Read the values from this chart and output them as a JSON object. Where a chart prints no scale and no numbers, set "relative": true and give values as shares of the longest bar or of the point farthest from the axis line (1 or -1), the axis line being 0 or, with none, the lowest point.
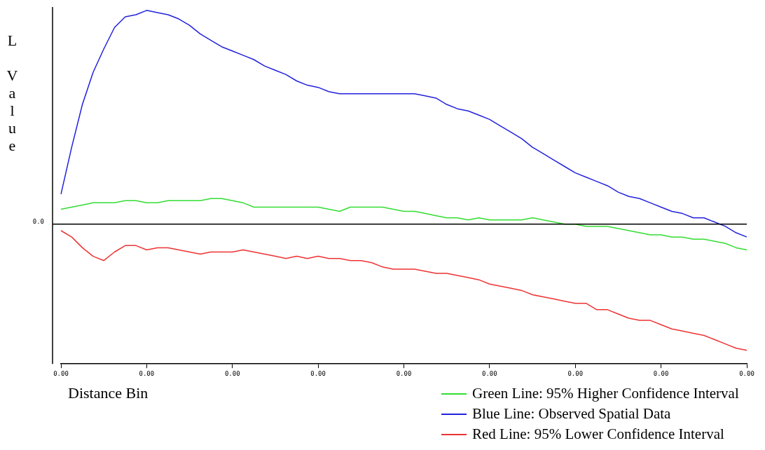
{
  "chart_data": {
    "type": "line",
    "relative": true,
    "xlabel": "Distance Bin",
    "ylabel": "L Value",
    "legend": "bottom right",
    "marker": "none",
    "categories": [
      "0.00",
      null,
      null,
      null,
      null,
      null,
      null,
      null,
      "0.00",
      null,
      null,
      null,
      null,
      null,
      null,
      null,
      "0.00",
      null,
      null,
      null,
      null,
      null,
      null,
      null,
      "0.00",
      null,
      null,
      null,
      null,
      null,
      null,
      null,
      "0.00",
      null,
      null,
      null,
      null,
      null,
      null,
      null,
      "0.00",
      null,
      null,
      null,
      null,
      null,
      null,
      null,
      "0.00",
      null,
      null,
      null,
      null,
      null,
      null,
      null,
      "0.00",
      null,
      null,
      null,
      null,
      null,
      null,
      null,
      "0.00"
    ],
    "ref_lines": [
      {
        "axis": "y",
        "value": 0,
        "label": "0.0",
        "color": "#000000"
      }
    ],
    "series": [
      {
        "name": "Green Line: 95% Higher Confidence Interval",
        "color": "#33dd33",
        "values": [
          0.07,
          0.08,
          0.09,
          0.1,
          0.1,
          0.1,
          0.11,
          0.11,
          0.1,
          0.1,
          0.11,
          0.11,
          0.11,
          0.11,
          0.12,
          0.12,
          0.11,
          0.1,
          0.08,
          0.08,
          0.08,
          0.08,
          0.08,
          0.08,
          0.08,
          0.07,
          0.06,
          0.08,
          0.08,
          0.08,
          0.08,
          0.07,
          0.06,
          0.06,
          0.05,
          0.04,
          0.03,
          0.03,
          0.02,
          0.03,
          0.02,
          0.02,
          0.02,
          0.02,
          0.03,
          0.02,
          0.01,
          0.0,
          0.0,
          -0.01,
          -0.01,
          -0.01,
          -0.02,
          -0.03,
          -0.04,
          -0.05,
          -0.05,
          -0.06,
          -0.06,
          -0.07,
          -0.07,
          -0.08,
          -0.09,
          -0.11,
          -0.12
        ]
      },
      {
        "name": "Blue Line: Observed Spatial Data",
        "color": "#2222dd",
        "values": [
          0.14,
          0.36,
          0.56,
          0.71,
          0.82,
          0.92,
          0.97,
          0.98,
          1,
          0.99,
          0.98,
          0.96,
          0.93,
          0.89,
          0.86,
          0.83,
          0.81,
          0.79,
          0.77,
          0.74,
          0.72,
          0.7,
          0.67,
          0.65,
          0.64,
          0.62,
          0.61,
          0.61,
          0.61,
          0.61,
          0.61,
          0.61,
          0.61,
          0.61,
          0.6,
          0.59,
          0.56,
          0.54,
          0.53,
          0.51,
          0.49,
          0.46,
          0.43,
          0.4,
          0.36,
          0.33,
          0.3,
          0.27,
          0.24,
          0.22,
          0.2,
          0.18,
          0.15,
          0.13,
          0.12,
          0.1,
          0.08,
          0.06,
          0.05,
          0.03,
          0.03,
          0.01,
          -0.01,
          -0.04,
          -0.06
        ]
      },
      {
        "name": "Red Line: 95% Lower Confidence Interval",
        "color": "#ee3333",
        "values": [
          -0.03,
          -0.06,
          -0.11,
          -0.15,
          -0.17,
          -0.13,
          -0.1,
          -0.1,
          -0.12,
          -0.11,
          -0.11,
          -0.12,
          -0.13,
          -0.14,
          -0.13,
          -0.13,
          -0.13,
          -0.12,
          -0.13,
          -0.14,
          -0.15,
          -0.16,
          -0.15,
          -0.16,
          -0.15,
          -0.16,
          -0.16,
          -0.17,
          -0.17,
          -0.18,
          -0.2,
          -0.21,
          -0.21,
          -0.21,
          -0.22,
          -0.23,
          -0.23,
          -0.24,
          -0.25,
          -0.26,
          -0.28,
          -0.29,
          -0.3,
          -0.31,
          -0.33,
          -0.34,
          -0.35,
          -0.36,
          -0.37,
          -0.37,
          -0.4,
          -0.4,
          -0.42,
          -0.44,
          -0.45,
          -0.45,
          -0.47,
          -0.49,
          -0.5,
          -0.51,
          -0.52,
          -0.54,
          -0.56,
          -0.58,
          -0.59
        ]
      }
    ]
  }
}
